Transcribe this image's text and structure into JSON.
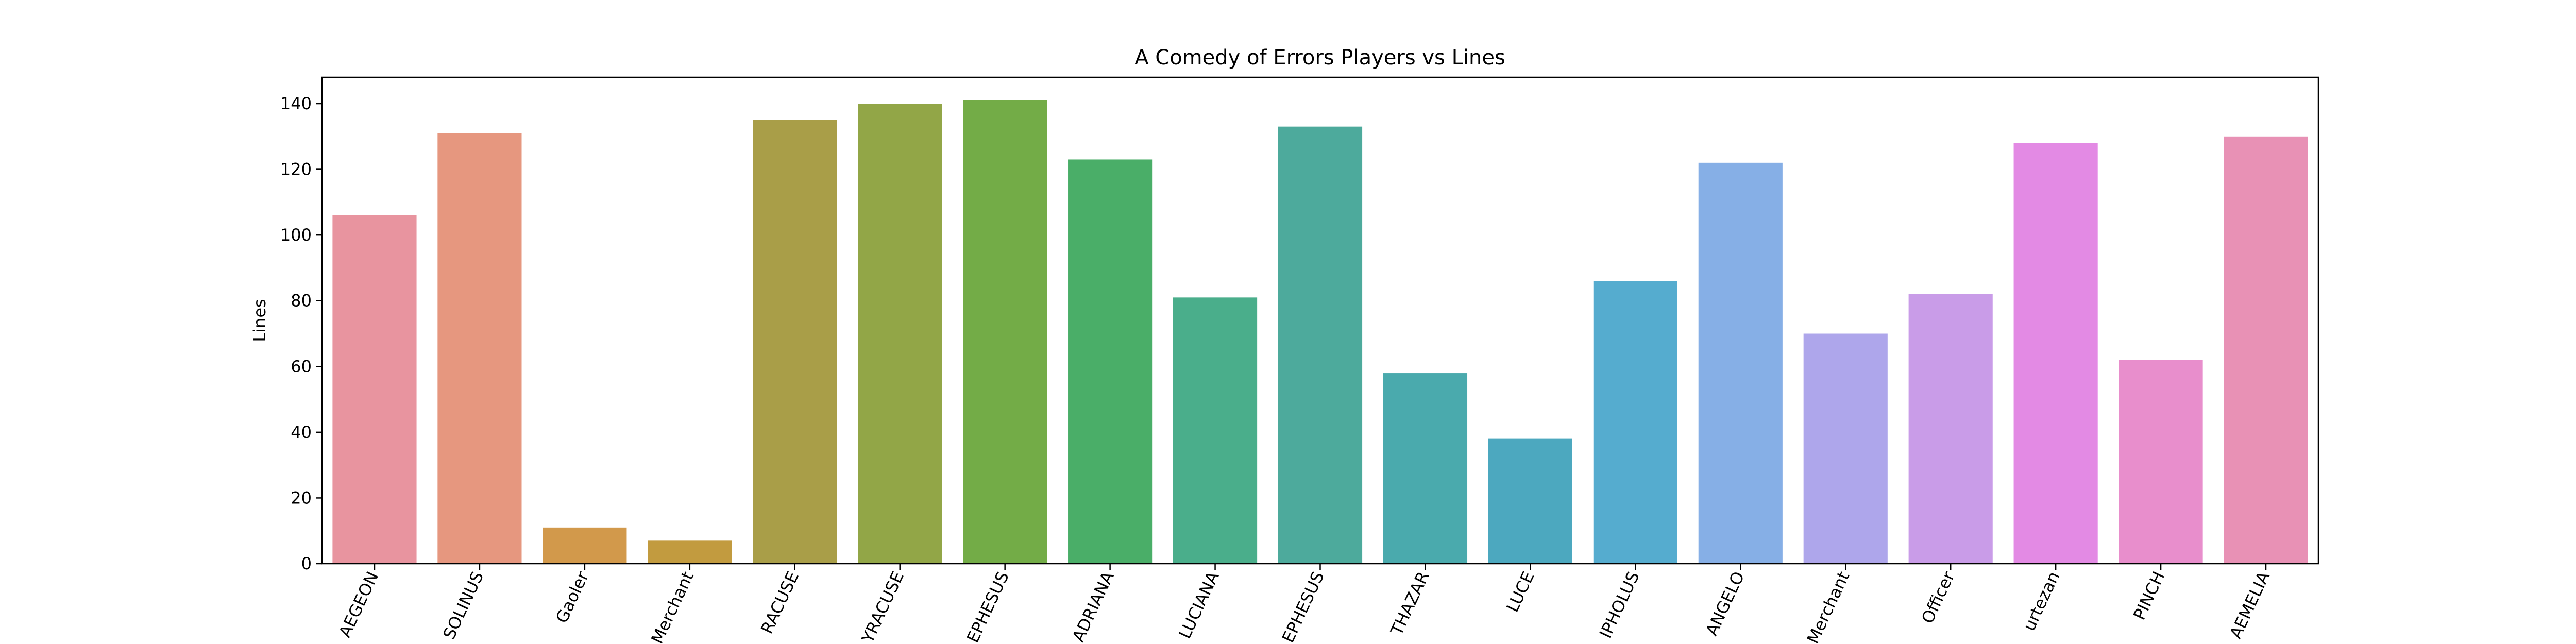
{
  "chart_data": {
    "type": "bar",
    "title": "A Comedy of Errors Players vs Lines",
    "y_label": "Lines",
    "categories": [
      "AEGEON",
      "SOLINUS",
      "Gaoler",
      "Merchant",
      "RACUSE",
      "YRACUSE",
      "EPHESUS",
      "ADRIANA",
      "LUCIANA",
      "EPHESUS",
      "THAZAR",
      "LUCE",
      "IPHOLUS",
      "ANGELO",
      "Merchant",
      "Officer",
      "urtezan",
      "PINCH",
      "AEMELIA"
    ],
    "values": [
      106,
      131,
      11,
      7,
      135,
      140,
      141,
      123,
      81,
      133,
      58,
      38,
      86,
      122,
      70,
      82,
      128,
      62,
      130
    ],
    "colors": [
      "#e8949f",
      "#e6977f",
      "#d2994b",
      "#c29b3f",
      "#a99e48",
      "#92a647",
      "#73ac47",
      "#4aae68",
      "#4aae8b",
      "#4daa9c",
      "#4aaaad",
      "#4ca8bf",
      "#55accf",
      "#86afe6",
      "#aea6eb",
      "#c99ce8",
      "#e38ae4",
      "#e88ecc",
      "#e891b5"
    ],
    "ylim": [
      0,
      148
    ],
    "yticks": [
      0,
      20,
      40,
      60,
      80,
      100,
      120,
      140
    ],
    "grid": false
  }
}
